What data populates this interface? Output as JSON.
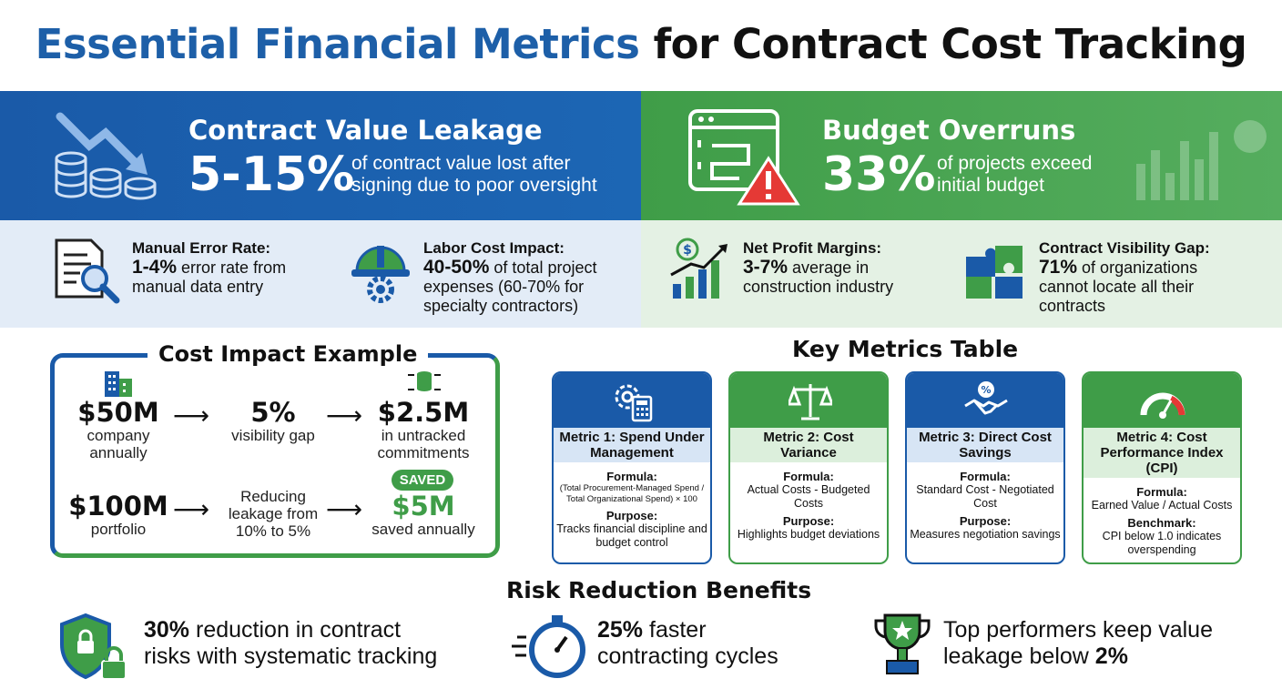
{
  "title": {
    "blue": "Essential Financial Metrics",
    "dark": "for Contract Cost Tracking"
  },
  "banner": {
    "left": {
      "heading": "Contract Value Leakage",
      "value": "5-15%",
      "line1": "of contract value lost after",
      "line2": "signing due to poor oversight"
    },
    "right": {
      "heading": "Budget Overruns",
      "value": "33%",
      "line1": "of projects exceed",
      "line2": "initial budget"
    }
  },
  "stats": [
    {
      "label": "Manual Error Rate:",
      "pct": "1-4%",
      "line1": "error rate from",
      "line2": "manual data entry",
      "line3": ""
    },
    {
      "label": "Labor Cost Impact:",
      "pct": "40-50%",
      "line1": "of total project",
      "line2": "expenses (60-70% for",
      "line3": "specialty contractors)"
    },
    {
      "label": "Net Profit Margins:",
      "pct": "3-7%",
      "line1": "average in",
      "line2": "construction industry",
      "line3": ""
    },
    {
      "label": "Contract Visibility Gap:",
      "pct": "71%",
      "line1": "of organizations",
      "line2": "cannot locate all their",
      "line3": "contracts"
    }
  ],
  "cost_impact": {
    "title": "Cost Impact Example",
    "row1": [
      {
        "value": "$50M",
        "text1": "company",
        "text2": "annually"
      },
      {
        "value": "5%",
        "text1": "visibility gap",
        "text2": ""
      },
      {
        "value": "$2.5M",
        "text1": "in untracked",
        "text2": "commitments"
      }
    ],
    "row2": [
      {
        "value": "$100M",
        "text1": "portfolio",
        "text2": ""
      },
      {
        "value": "",
        "text1": "Reducing",
        "text2": "leakage from",
        "text3": "10% to 5%"
      },
      {
        "value": "$5M",
        "text1": "saved annually",
        "text2": ""
      }
    ],
    "badge": "SAVED",
    "arrow": "⟶"
  },
  "metrics_table": {
    "title": "Key Metrics Table",
    "cards": [
      {
        "name": "Metric 1: Spend Under Management",
        "f_label": "Formula:",
        "formula": "(Total Procurement-Managed Spend / Total Organizational Spend) × 100",
        "p_label": "Purpose:",
        "purpose": "Tracks financial discipline and budget control"
      },
      {
        "name": "Metric 2: Cost Variance",
        "f_label": "Formula:",
        "formula": "Actual Costs - Budgeted Costs",
        "p_label": "Purpose:",
        "purpose": "Highlights budget deviations"
      },
      {
        "name": "Metric 3: Direct Cost Savings",
        "f_label": "Formula:",
        "formula": "Standard Cost - Negotiated Cost",
        "p_label": "Purpose:",
        "purpose": "Measures negotiation savings"
      },
      {
        "name": "Metric 4: Cost Performance Index (CPI)",
        "f_label": "Formula:",
        "formula": "Earned Value / Actual Costs",
        "p_label": "Benchmark:",
        "purpose": "CPI below 1.0 indicates overspending"
      }
    ]
  },
  "risk": {
    "title": "Risk Reduction Benefits",
    "items": [
      {
        "strong": "30%",
        "line1": "reduction in contract",
        "line2": "risks with systematic tracking"
      },
      {
        "strong": "25%",
        "line1": "faster",
        "line2": "contracting cycles"
      },
      {
        "pre": "Top performers keep value",
        "line2": "leakage below",
        "strong": "2%"
      }
    ]
  },
  "colors": {
    "blue": "#1a5aa8",
    "green": "#3f9d48",
    "red": "#e53935"
  }
}
